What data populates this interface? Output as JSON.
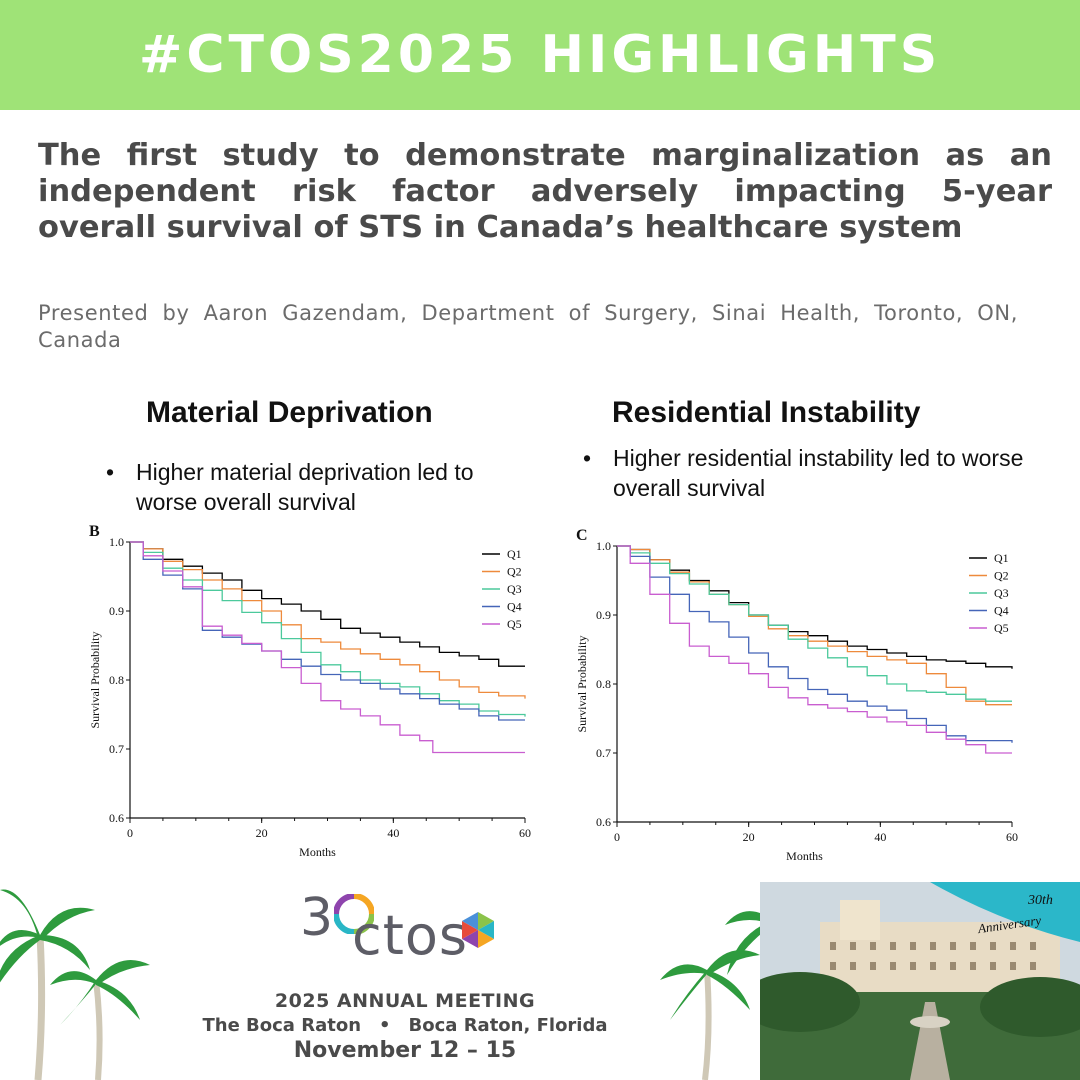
{
  "banner": {
    "text": "#CTOS2025 HIGHLIGHTS"
  },
  "headline": "The first study to demonstrate marginalization as an independent risk factor adversely impacting 5-year overall survival of STS in Canada’s healthcare system",
  "presenter": "Presented by Aaron Gazendam, Department of Surgery, Sinai Health, Toronto, ON, Canada",
  "panels": [
    {
      "title": "Material Deprivation",
      "bullet_symbol": "•",
      "bullet": "Higher material deprivation led to worse overall survival"
    },
    {
      "title": "Residential Instability",
      "bullet_symbol": "•",
      "bullet": "Higher residential instability led to worse overall survival"
    }
  ],
  "chart_data": [
    {
      "type": "line",
      "panel_label": "B",
      "xlabel": "Months",
      "ylabel": "Survival Probability",
      "xlim": [
        0,
        60
      ],
      "ylim": [
        0.6,
        1.0
      ],
      "xticks": [
        0,
        20,
        40,
        60
      ],
      "yticks": [
        0.6,
        0.7,
        0.8,
        0.9,
        1.0
      ],
      "tick_labels_x": [
        "0",
        "20",
        "40",
        "60"
      ],
      "tick_labels_y": [
        "0.6",
        "0.7",
        "0.8",
        "0.9",
        "1.0"
      ],
      "legend": "top-right",
      "grid": false,
      "series": [
        {
          "name": "Q1",
          "color": "#000000",
          "x": [
            0,
            2,
            5,
            8,
            11,
            14,
            17,
            20,
            23,
            26,
            29,
            32,
            35,
            38,
            41,
            44,
            47,
            50,
            53,
            56,
            60
          ],
          "y": [
            1.0,
            0.99,
            0.975,
            0.965,
            0.955,
            0.945,
            0.93,
            0.918,
            0.91,
            0.9,
            0.888,
            0.875,
            0.868,
            0.862,
            0.855,
            0.848,
            0.84,
            0.835,
            0.83,
            0.82,
            0.82
          ]
        },
        {
          "name": "Q2",
          "color": "#ee8a3c",
          "x": [
            0,
            2,
            5,
            8,
            11,
            14,
            17,
            20,
            23,
            26,
            29,
            32,
            35,
            38,
            41,
            44,
            47,
            50,
            53,
            56,
            60
          ],
          "y": [
            1.0,
            0.99,
            0.972,
            0.96,
            0.945,
            0.932,
            0.915,
            0.9,
            0.88,
            0.86,
            0.855,
            0.845,
            0.838,
            0.83,
            0.822,
            0.812,
            0.8,
            0.79,
            0.782,
            0.777,
            0.773
          ]
        },
        {
          "name": "Q3",
          "color": "#4cc99c",
          "x": [
            0,
            2,
            5,
            8,
            11,
            14,
            17,
            20,
            23,
            26,
            29,
            32,
            35,
            38,
            41,
            44,
            47,
            50,
            53,
            56,
            60
          ],
          "y": [
            1.0,
            0.985,
            0.962,
            0.945,
            0.93,
            0.915,
            0.898,
            0.883,
            0.86,
            0.84,
            0.822,
            0.812,
            0.8,
            0.795,
            0.79,
            0.78,
            0.77,
            0.765,
            0.755,
            0.75,
            0.747
          ]
        },
        {
          "name": "Q4",
          "color": "#4565b8",
          "x": [
            0,
            2,
            5,
            8,
            11,
            14,
            17,
            20,
            23,
            26,
            29,
            32,
            35,
            38,
            41,
            44,
            47,
            50,
            53,
            56,
            60
          ],
          "y": [
            1.0,
            0.975,
            0.952,
            0.932,
            0.872,
            0.862,
            0.852,
            0.842,
            0.83,
            0.82,
            0.808,
            0.8,
            0.795,
            0.787,
            0.78,
            0.773,
            0.765,
            0.758,
            0.748,
            0.742,
            0.742
          ]
        },
        {
          "name": "Q5",
          "color": "#c95ed0",
          "x": [
            0,
            2,
            5,
            8,
            11,
            14,
            17,
            20,
            23,
            26,
            29,
            32,
            35,
            38,
            41,
            44,
            46,
            50,
            55,
            60
          ],
          "y": [
            1.0,
            0.98,
            0.958,
            0.935,
            0.878,
            0.865,
            0.853,
            0.842,
            0.818,
            0.795,
            0.77,
            0.758,
            0.748,
            0.735,
            0.72,
            0.712,
            0.695,
            0.695,
            0.695,
            0.695
          ]
        }
      ]
    },
    {
      "type": "line",
      "panel_label": "C",
      "xlabel": "Months",
      "ylabel": "Survival Probability",
      "xlim": [
        0,
        60
      ],
      "ylim": [
        0.6,
        1.0
      ],
      "xticks": [
        0,
        20,
        40,
        60
      ],
      "yticks": [
        0.6,
        0.7,
        0.8,
        0.9,
        1.0
      ],
      "tick_labels_x": [
        "0",
        "20",
        "40",
        "60"
      ],
      "tick_labels_y": [
        "0.6",
        "0.7",
        "0.8",
        "0.9",
        "1.0"
      ],
      "legend": "top-right",
      "grid": false,
      "series": [
        {
          "name": "Q1",
          "color": "#000000",
          "x": [
            0,
            2,
            5,
            8,
            11,
            14,
            17,
            20,
            23,
            26,
            29,
            32,
            35,
            38,
            41,
            44,
            47,
            50,
            53,
            56,
            60
          ],
          "y": [
            1.0,
            0.995,
            0.98,
            0.965,
            0.95,
            0.935,
            0.918,
            0.9,
            0.885,
            0.876,
            0.87,
            0.862,
            0.855,
            0.85,
            0.845,
            0.84,
            0.835,
            0.833,
            0.83,
            0.825,
            0.822
          ]
        },
        {
          "name": "Q2",
          "color": "#ee8a3c",
          "x": [
            0,
            2,
            5,
            8,
            11,
            14,
            17,
            20,
            23,
            26,
            29,
            32,
            35,
            38,
            41,
            44,
            47,
            50,
            53,
            56,
            60
          ],
          "y": [
            1.0,
            0.995,
            0.98,
            0.962,
            0.948,
            0.93,
            0.915,
            0.898,
            0.88,
            0.87,
            0.862,
            0.855,
            0.847,
            0.84,
            0.835,
            0.83,
            0.815,
            0.795,
            0.775,
            0.77,
            0.77
          ]
        },
        {
          "name": "Q3",
          "color": "#4cc99c",
          "x": [
            0,
            2,
            5,
            8,
            11,
            14,
            17,
            20,
            23,
            26,
            29,
            32,
            35,
            38,
            41,
            44,
            47,
            50,
            53,
            56,
            60
          ],
          "y": [
            1.0,
            0.99,
            0.975,
            0.96,
            0.945,
            0.93,
            0.915,
            0.9,
            0.885,
            0.865,
            0.852,
            0.838,
            0.825,
            0.812,
            0.8,
            0.79,
            0.788,
            0.785,
            0.778,
            0.775,
            0.775
          ]
        },
        {
          "name": "Q4",
          "color": "#4565b8",
          "x": [
            0,
            2,
            5,
            8,
            11,
            14,
            17,
            20,
            23,
            26,
            29,
            32,
            35,
            38,
            41,
            44,
            47,
            50,
            53,
            56,
            60
          ],
          "y": [
            1.0,
            0.985,
            0.955,
            0.93,
            0.905,
            0.89,
            0.868,
            0.845,
            0.825,
            0.808,
            0.792,
            0.785,
            0.775,
            0.768,
            0.762,
            0.75,
            0.74,
            0.725,
            0.718,
            0.718,
            0.715
          ]
        },
        {
          "name": "Q5",
          "color": "#c95ed0",
          "x": [
            0,
            2,
            5,
            8,
            11,
            14,
            17,
            20,
            23,
            26,
            29,
            32,
            35,
            38,
            41,
            44,
            47,
            50,
            53,
            56,
            60
          ],
          "y": [
            1.0,
            0.975,
            0.93,
            0.888,
            0.855,
            0.84,
            0.83,
            0.815,
            0.795,
            0.78,
            0.77,
            0.765,
            0.76,
            0.752,
            0.745,
            0.74,
            0.73,
            0.72,
            0.712,
            0.7,
            0.7
          ]
        }
      ]
    }
  ],
  "meeting": {
    "logo_left": "3",
    "logo_right": "ctos",
    "title": "2025 ANNUAL MEETING",
    "venue": "The Boca Raton",
    "separator": "•",
    "location": "Boca Raton, Florida",
    "dates": "November 12 – 15",
    "anniversary_line1": "30th",
    "anniversary_line2": "Anniversary"
  },
  "colors": {
    "banner": "#9fe377",
    "headline": "#4a4a4a",
    "presenter": "#6b6b6b",
    "anniversary_ribbon": "#2bb7c9"
  }
}
